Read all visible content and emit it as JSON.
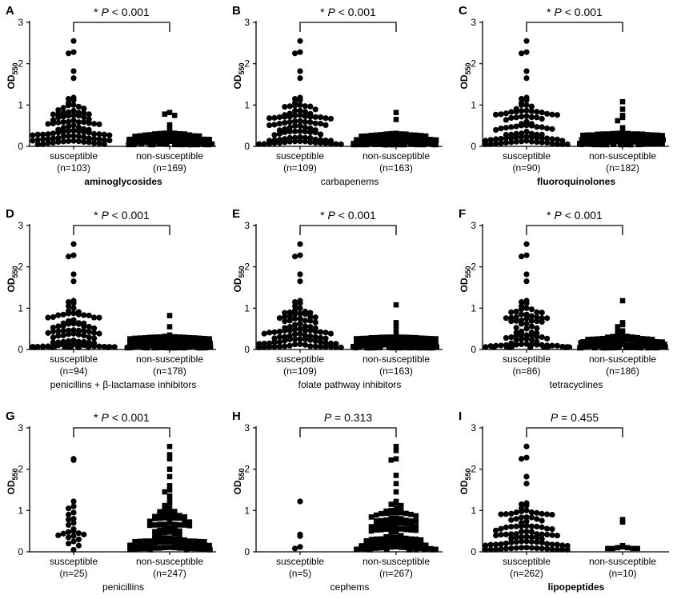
{
  "chart_data": [
    {
      "type": "scatter",
      "letter": "A",
      "class_name": "aminoglycosides",
      "class_bold": true,
      "ylabel": "OD",
      "ylabel_sub": "550",
      "ylim": [
        0,
        3
      ],
      "yticks": [
        "0",
        "1",
        "2",
        "3"
      ],
      "p_star": "* ",
      "p_italic": "P",
      "p_rest": " < 0.001",
      "groups": [
        {
          "name": "susceptible",
          "n_label": "(n=103)",
          "n": 103,
          "marker": "circle",
          "top_values": [
            2.55,
            2.28,
            2.25,
            1.82,
            1.65,
            1.18,
            1.15,
            1.12,
            1.05,
            1.0
          ]
        },
        {
          "name": "non-susceptible",
          "n_label": "(n=169)",
          "n": 169,
          "marker": "square",
          "top_values": [
            0.82,
            0.78,
            0.75,
            0.52,
            0.45,
            0.35,
            0.3,
            0.25
          ]
        }
      ]
    },
    {
      "type": "scatter",
      "letter": "B",
      "class_name": "carbapenems",
      "class_bold": false,
      "ylabel": "OD",
      "ylabel_sub": "550",
      "ylim": [
        0,
        3
      ],
      "yticks": [
        "0",
        "1",
        "2",
        "3"
      ],
      "p_star": "* ",
      "p_italic": "P",
      "p_rest": " < 0.001",
      "groups": [
        {
          "name": "susceptible",
          "n_label": "(n=109)",
          "n": 109,
          "marker": "circle",
          "top_values": [
            2.55,
            2.28,
            2.25,
            1.82,
            1.65,
            1.18,
            1.15,
            1.12,
            1.05,
            1.0
          ]
        },
        {
          "name": "non-susceptible",
          "n_label": "(n=163)",
          "n": 163,
          "marker": "square",
          "top_values": [
            0.82,
            0.65,
            0.3,
            0.25
          ]
        }
      ]
    },
    {
      "type": "scatter",
      "letter": "C",
      "class_name": "fluoroquinolones",
      "class_bold": true,
      "ylabel": "OD",
      "ylabel_sub": "550",
      "ylim": [
        0,
        3
      ],
      "yticks": [
        "0",
        "1",
        "2",
        "3"
      ],
      "p_star": "* ",
      "p_italic": "P",
      "p_rest": " < 0.001",
      "groups": [
        {
          "name": "susceptible",
          "n_label": "(n=90)",
          "n": 90,
          "marker": "circle",
          "top_values": [
            2.55,
            2.28,
            2.25,
            1.82,
            1.65,
            1.18,
            1.15,
            1.12,
            1.05,
            1.0
          ]
        },
        {
          "name": "non-susceptible",
          "n_label": "(n=182)",
          "n": 182,
          "marker": "square",
          "top_values": [
            1.08,
            0.9,
            0.75,
            0.7,
            0.62,
            0.45,
            0.35,
            0.3,
            0.25
          ]
        }
      ]
    },
    {
      "type": "scatter",
      "letter": "D",
      "class_name": "penicillins + β-lactamase inhibitors",
      "class_bold": false,
      "ylabel": "OD",
      "ylabel_sub": "550",
      "ylim": [
        0,
        3
      ],
      "yticks": [
        "0",
        "1",
        "2",
        "3"
      ],
      "p_star": "* ",
      "p_italic": "P",
      "p_rest": " < 0.001",
      "groups": [
        {
          "name": "susceptible",
          "n_label": "(n=94)",
          "n": 94,
          "marker": "circle",
          "top_values": [
            2.55,
            2.28,
            2.25,
            1.82,
            1.65,
            1.18,
            1.15,
            1.12,
            1.05,
            1.0
          ]
        },
        {
          "name": "non-susceptible",
          "n_label": "(n=178)",
          "n": 178,
          "marker": "square",
          "top_values": [
            0.82,
            0.55,
            0.35,
            0.3,
            0.25
          ]
        }
      ]
    },
    {
      "type": "scatter",
      "letter": "E",
      "class_name": "folate pathway inhibitors",
      "class_bold": false,
      "ylabel": "OD",
      "ylabel_sub": "550",
      "ylim": [
        0,
        3
      ],
      "yticks": [
        "0",
        "1",
        "2",
        "3"
      ],
      "p_star": "* ",
      "p_italic": "P",
      "p_rest": " < 0.001",
      "groups": [
        {
          "name": "susceptible",
          "n_label": "(n=109)",
          "n": 109,
          "marker": "circle",
          "top_values": [
            2.55,
            2.28,
            2.25,
            1.82,
            1.65,
            1.18,
            1.15,
            1.12,
            1.05,
            1.0
          ]
        },
        {
          "name": "non-susceptible",
          "n_label": "(n=163)",
          "n": 163,
          "marker": "square",
          "top_values": [
            1.08,
            0.65,
            0.55,
            0.42,
            0.3,
            0.25
          ]
        }
      ]
    },
    {
      "type": "scatter",
      "letter": "F",
      "class_name": "tetracyclines",
      "class_bold": false,
      "ylabel": "OD",
      "ylabel_sub": "550",
      "ylim": [
        0,
        3
      ],
      "yticks": [
        "0",
        "1",
        "2",
        "3"
      ],
      "p_star": "* ",
      "p_italic": "P",
      "p_rest": " < 0.001",
      "groups": [
        {
          "name": "susceptible",
          "n_label": "(n=86)",
          "n": 86,
          "marker": "circle",
          "top_values": [
            2.55,
            2.28,
            2.25,
            1.82,
            1.65,
            1.18,
            1.15,
            1.12,
            1.05,
            1.0
          ]
        },
        {
          "name": "non-susceptible",
          "n_label": "(n=186)",
          "n": 186,
          "marker": "square",
          "top_values": [
            1.18,
            0.65,
            0.6,
            0.55,
            0.45,
            0.42,
            0.35,
            0.3,
            0.25
          ]
        }
      ]
    },
    {
      "type": "scatter",
      "letter": "G",
      "class_name": "penicillins",
      "class_bold": false,
      "ylabel": "OD",
      "ylabel_sub": "550",
      "ylim": [
        0,
        3
      ],
      "yticks": [
        "0",
        "1",
        "2",
        "3"
      ],
      "p_star": "* ",
      "p_italic": "P",
      "p_rest": " < 0.001",
      "groups": [
        {
          "name": "susceptible",
          "n_label": "(n=25)",
          "n": 25,
          "marker": "circle",
          "top_values": [
            2.25,
            2.22,
            1.22,
            1.1,
            1.05,
            0.95,
            0.9,
            0.8,
            0.78,
            0.7,
            0.65,
            0.55,
            0.5,
            0.48,
            0.45,
            0.44,
            0.42,
            0.4,
            0.38,
            0.35,
            0.3,
            0.25,
            0.2,
            0.15,
            0.05
          ]
        },
        {
          "name": "non-susceptible",
          "n_label": "(n=247)",
          "n": 247,
          "marker": "square",
          "top_values": [
            2.55,
            2.35,
            2.25,
            2.0,
            1.82,
            1.6,
            1.5,
            1.45,
            1.35,
            1.25,
            1.18,
            1.12,
            1.05,
            1.0
          ]
        }
      ]
    },
    {
      "type": "scatter",
      "letter": "H",
      "class_name": "cephems",
      "class_bold": false,
      "ylabel": "OD",
      "ylabel_sub": "550",
      "ylim": [
        0,
        3
      ],
      "yticks": [
        "0",
        "1",
        "2",
        "3"
      ],
      "p_star": "",
      "p_italic": "P",
      "p_rest": " = 0.313",
      "groups": [
        {
          "name": "susceptible",
          "n_label": "(n=5)",
          "n": 5,
          "marker": "circle",
          "top_values": [
            1.22,
            0.42,
            0.38,
            0.12,
            0.08
          ]
        },
        {
          "name": "non-susceptible",
          "n_label": "(n=267)",
          "n": 267,
          "marker": "square",
          "top_values": [
            2.55,
            2.45,
            2.25,
            2.22,
            1.85,
            1.65,
            1.45,
            1.22,
            1.18,
            1.15,
            1.12,
            1.05,
            1.0
          ]
        }
      ]
    },
    {
      "type": "scatter",
      "letter": "I",
      "class_name": "lipopeptides",
      "class_bold": true,
      "ylabel": "OD",
      "ylabel_sub": "550",
      "ylim": [
        0,
        3
      ],
      "yticks": [
        "0",
        "1",
        "2",
        "3"
      ],
      "p_star": "",
      "p_italic": "P",
      "p_rest": " = 0.455",
      "groups": [
        {
          "name": "susceptible",
          "n_label": "(n=262)",
          "n": 262,
          "marker": "circle",
          "top_values": [
            2.55,
            2.28,
            2.25,
            1.82,
            1.65,
            1.18,
            1.15,
            1.12,
            1.05,
            1.0
          ]
        },
        {
          "name": "non-susceptible",
          "n_label": "(n=10)",
          "n": 10,
          "marker": "square",
          "top_values": [
            0.78,
            0.72,
            0.15,
            0.12,
            0.1,
            0.1,
            0.08,
            0.08,
            0.08,
            0.08
          ]
        }
      ]
    }
  ]
}
